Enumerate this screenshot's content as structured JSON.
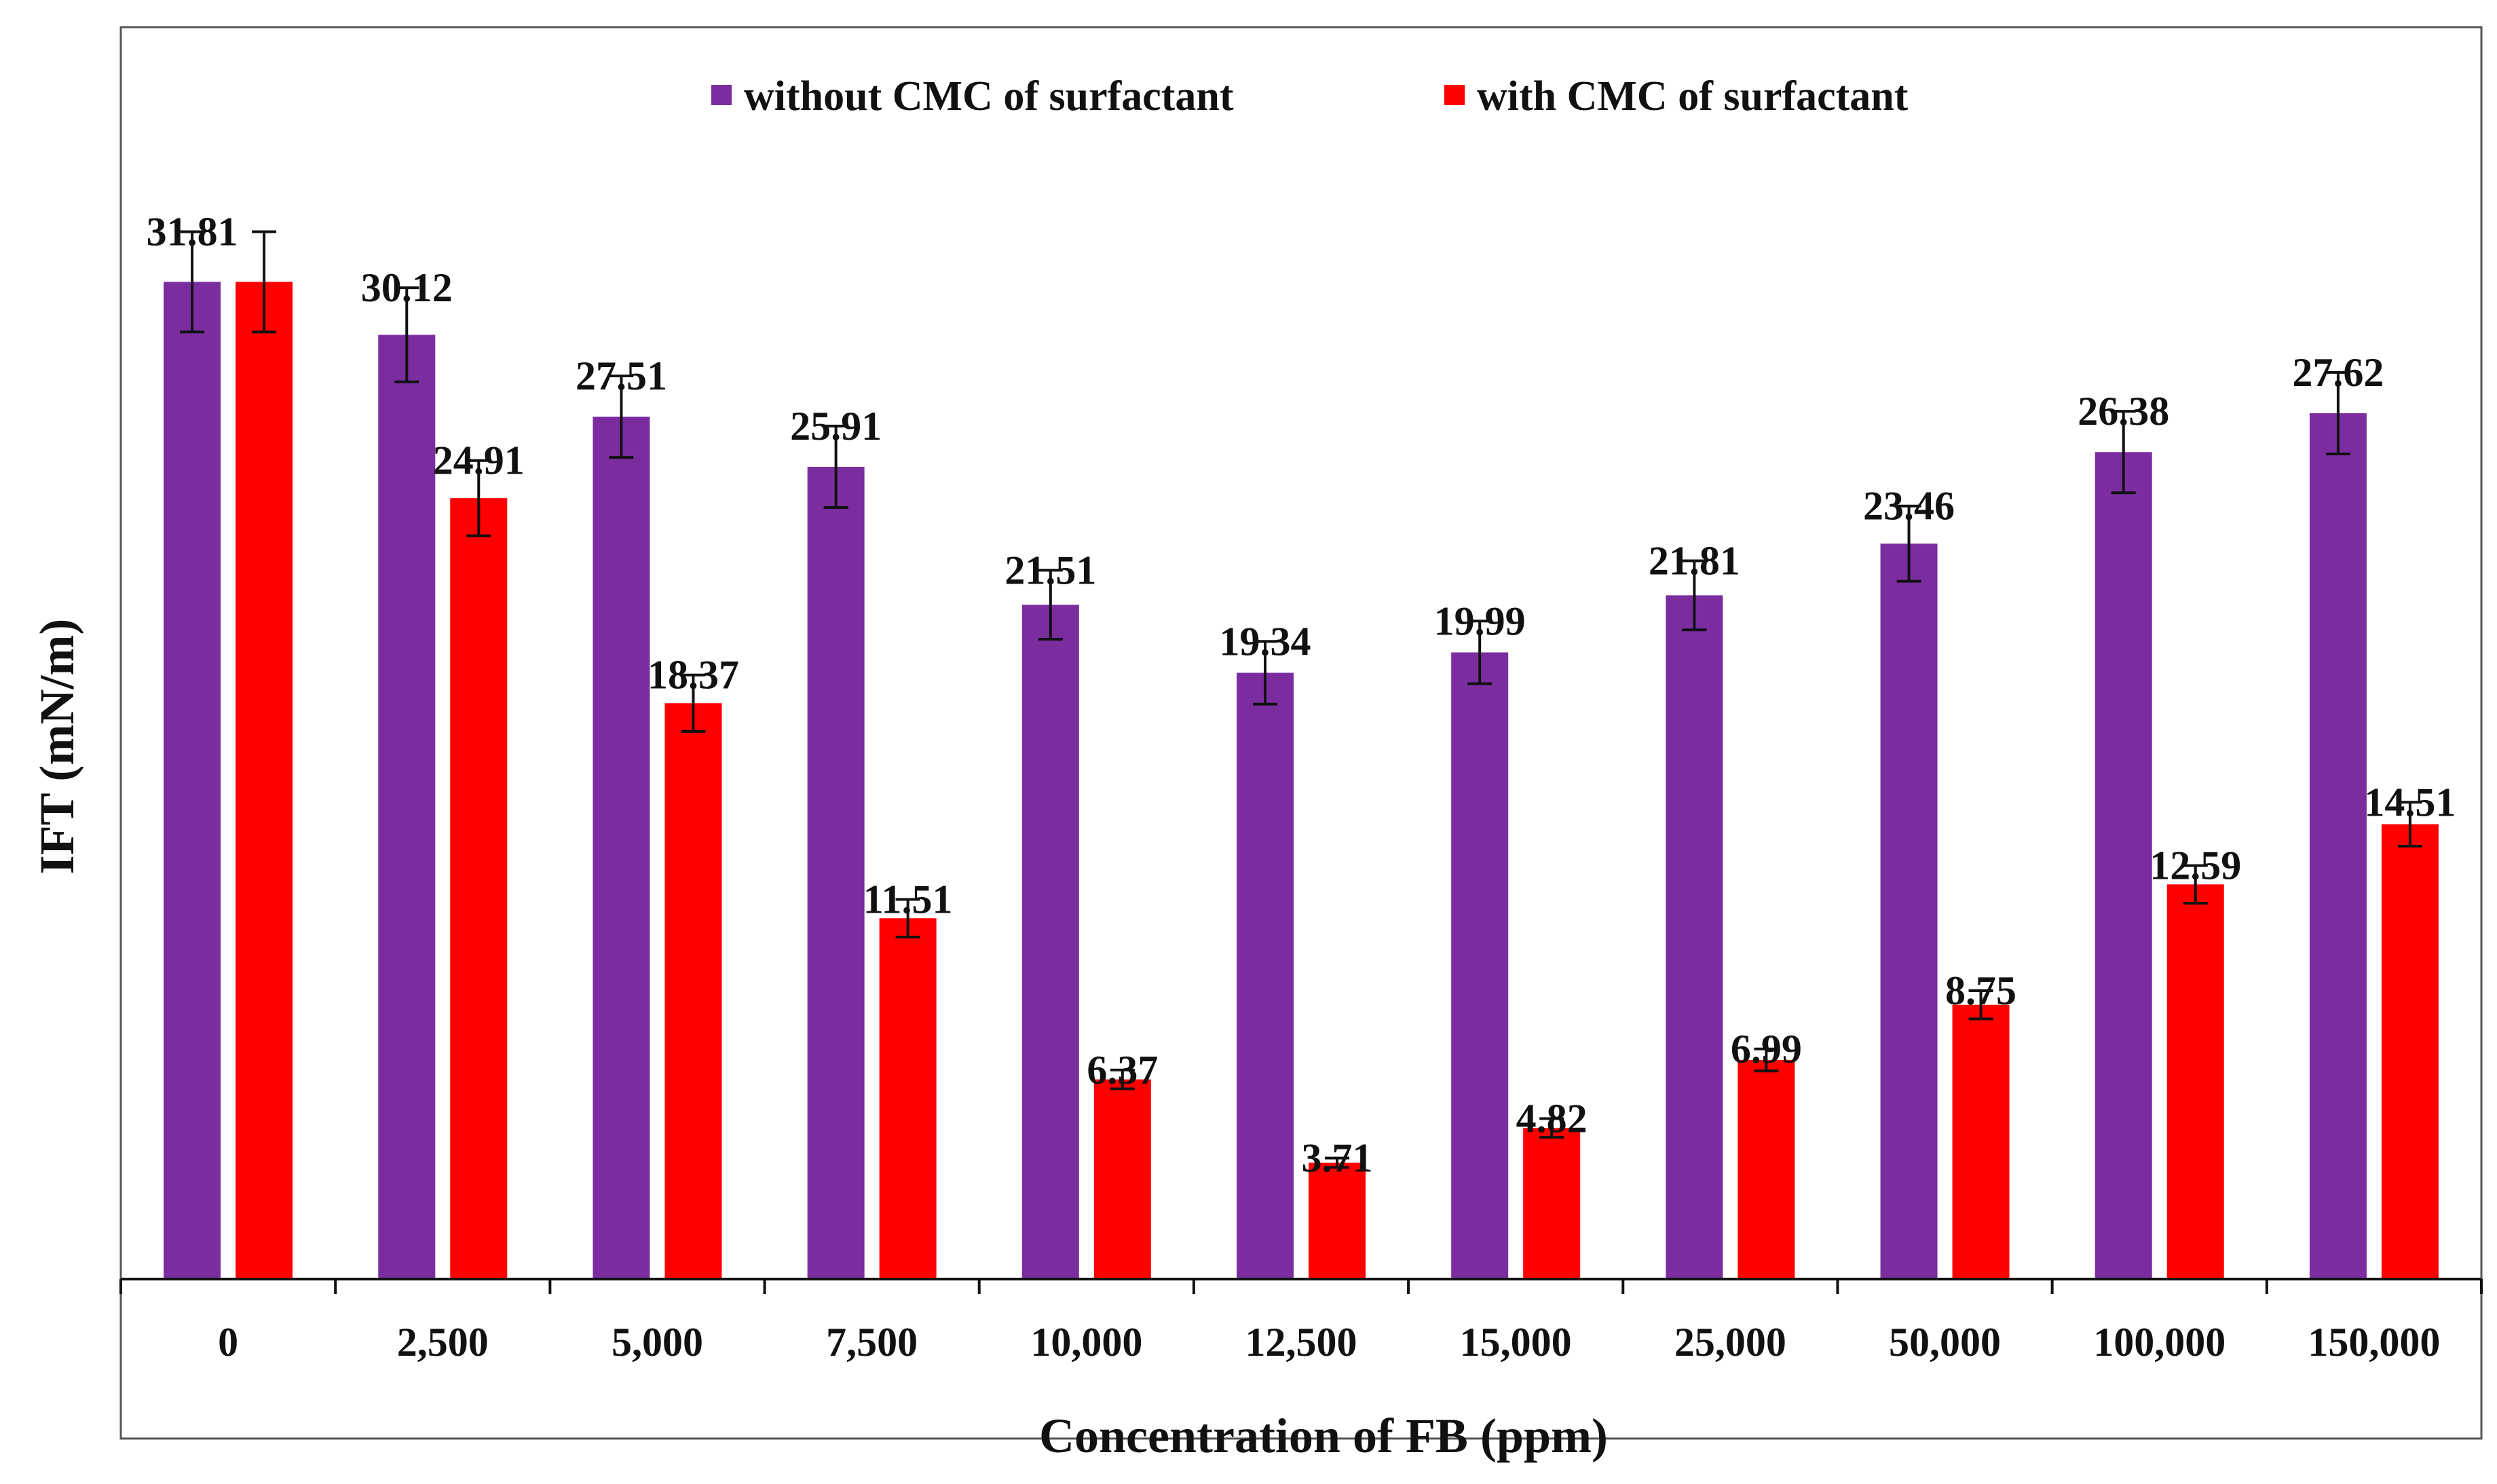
{
  "chart_data": {
    "type": "bar",
    "title": "",
    "xlabel": "Concentration of FB (ppm)",
    "ylabel": "IFT (mN/m)",
    "ylim": [
      0,
      35
    ],
    "grid": false,
    "legend_position": "top-center",
    "categories": [
      "0",
      "2,500",
      "5,000",
      "7,500",
      "10,000",
      "12,500",
      "15,000",
      "25,000",
      "50,000",
      "100,000",
      "150,000"
    ],
    "series": [
      {
        "name": "without CMC of surfactant",
        "color": "#7B2DA0",
        "values": [
          31.81,
          30.12,
          27.51,
          25.91,
          21.51,
          19.34,
          19.99,
          21.81,
          23.46,
          26.38,
          27.62
        ],
        "labels": [
          "31.81",
          "30.12",
          "27.51",
          "25.91",
          "21.51",
          "19.34",
          "19.99",
          "21.81",
          "23.46",
          "26.38",
          "27.62"
        ],
        "errors": [
          1.6,
          1.5,
          1.3,
          1.3,
          1.1,
          1.0,
          1.0,
          1.1,
          1.2,
          1.3,
          1.3
        ]
      },
      {
        "name": "with CMC of surfactant",
        "color": "#FF0000",
        "values": [
          31.81,
          24.91,
          18.37,
          11.51,
          6.37,
          3.71,
          4.82,
          6.99,
          8.75,
          12.59,
          14.51
        ],
        "labels": [
          "",
          "24.91",
          "18.37",
          "11.51",
          "6.37",
          "3.71",
          "4.82",
          "6.99",
          "8.75",
          "12.59",
          "14.51"
        ],
        "errors": [
          1.6,
          1.2,
          0.9,
          0.6,
          0.3,
          0.15,
          0.3,
          0.35,
          0.45,
          0.6,
          0.7
        ]
      }
    ]
  }
}
